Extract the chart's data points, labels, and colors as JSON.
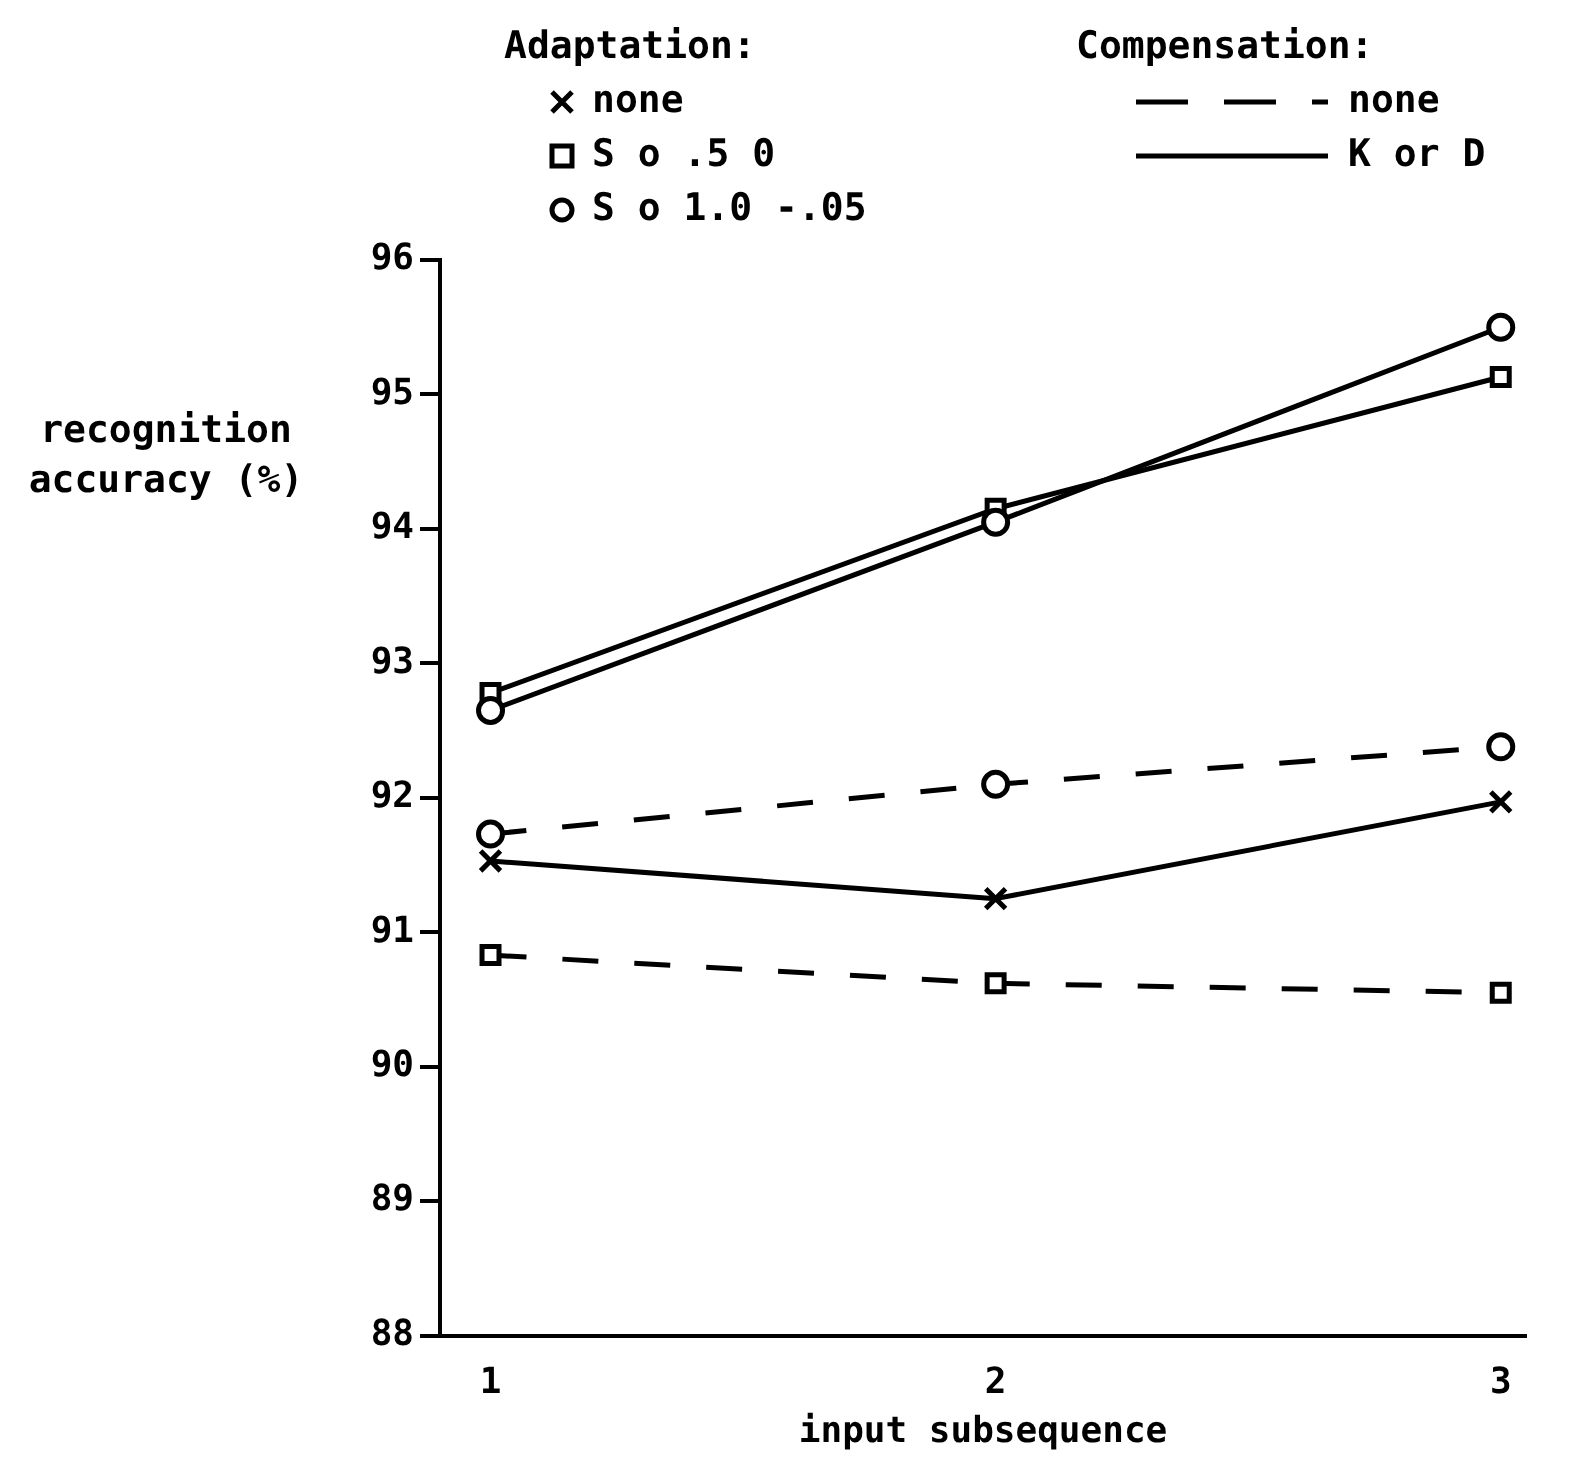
{
  "chart_data": {
    "type": "line",
    "xlabel": "input subsequence",
    "ylabel": "recognition accuracy (%)",
    "x": [
      1,
      2,
      3
    ],
    "xlim": [
      0.9,
      3.05
    ],
    "xticks": [
      1,
      2,
      3
    ],
    "ylim": [
      88,
      96
    ],
    "yticks": [
      88,
      89,
      90,
      91,
      92,
      93,
      94,
      95,
      96
    ],
    "grid": false,
    "annotations": [
      "Adaptation:",
      "none",
      "S o .5 0",
      "S o 1.0 -.05",
      "Compensation:",
      "none",
      "K or D"
    ],
    "series": [
      {
        "color": "#000000",
        "marker": "circle",
        "line_style": "solid",
        "values": [
          92.65,
          94.05,
          95.5
        ]
      },
      {
        "color": "#000000",
        "marker": "square",
        "line_style": "solid",
        "values": [
          92.78,
          94.15,
          95.13
        ]
      },
      {
        "color": "#000000",
        "marker": "circle",
        "line_style": "dashed",
        "values": [
          91.73,
          92.1,
          92.38
        ]
      },
      {
        "color": "#000000",
        "marker": "cross",
        "line_style": "solid",
        "values": [
          91.53,
          91.25,
          91.97
        ]
      },
      {
        "color": "#000000",
        "marker": "square",
        "line_style": "dashed",
        "values": [
          90.83,
          90.62,
          90.55
        ]
      }
    ]
  }
}
